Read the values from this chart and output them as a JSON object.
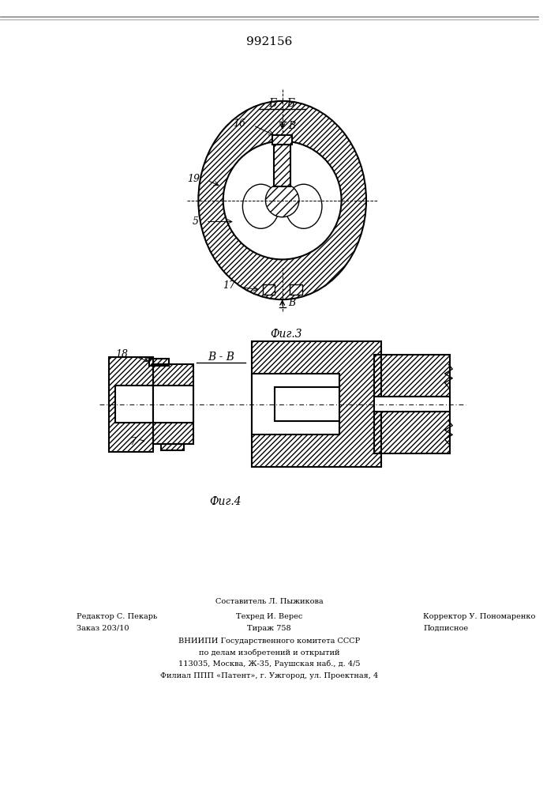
{
  "patent_number": "992156",
  "fig3_label": "Фиг.3",
  "fig4_label": "Фиг.4",
  "section_label_bb": "Б - Б",
  "section_label_vv": "В - В",
  "num_16": "16",
  "num_19": "19",
  "num_5": "5",
  "num_17": "17",
  "num_18": "18",
  "num_7": "7",
  "footer_line1": "Составитель Л. Пыжикова",
  "footer_line2_left": "Редактор С. Пекарь",
  "footer_line2_mid": "Техред И. Верес",
  "footer_line2_right": "Корректор У. Пономаренко",
  "footer_line3_left": "Заказ 203/10",
  "footer_line3_mid": "Тираж 758",
  "footer_line3_right": "Подписное",
  "footer_line4": "ВНИИПИ Государственного комитета СССР",
  "footer_line5": "по делам изобретений и открытий",
  "footer_line6": "113035, Москва, Ж-35, Раушская наб., д. 4/5",
  "footer_line7": "Филиал ППП «Патент», г. Ужгород, ул. Проектная, 4",
  "bg_color": "#ffffff",
  "line_color": "#000000"
}
